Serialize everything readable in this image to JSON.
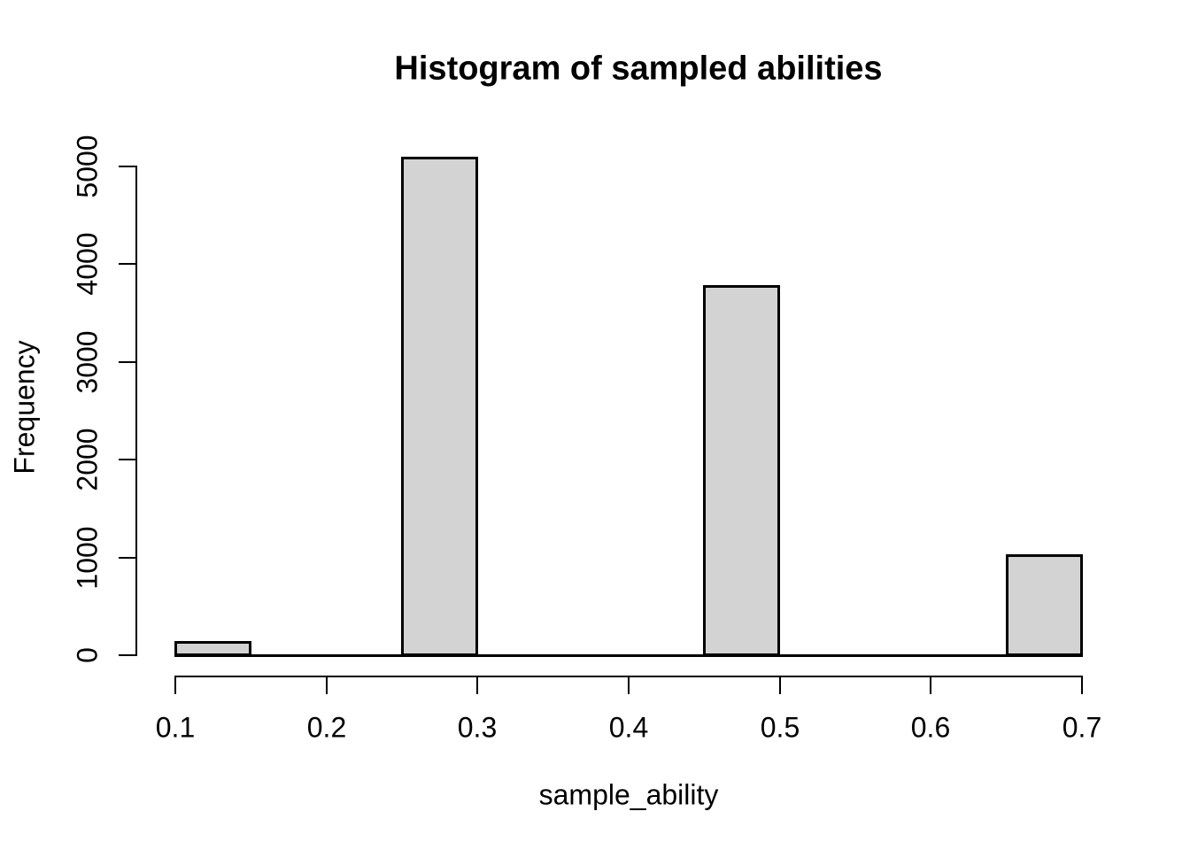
{
  "chart_data": {
    "type": "bar",
    "subtype": "histogram",
    "title": "Histogram of sampled abilities",
    "xlabel": "sample_ability",
    "ylabel": "Frequency",
    "xlim": [
      0.1,
      0.7
    ],
    "ylim": [
      0,
      5000
    ],
    "xticks": [
      0.1,
      0.2,
      0.3,
      0.4,
      0.5,
      0.6,
      0.7
    ],
    "yticks": [
      0,
      1000,
      2000,
      3000,
      4000,
      5000
    ],
    "bin_width": 0.05,
    "bins": [
      {
        "from": 0.1,
        "to": 0.15,
        "count": 135
      },
      {
        "from": 0.15,
        "to": 0.2,
        "count": 0
      },
      {
        "from": 0.2,
        "to": 0.25,
        "count": 0
      },
      {
        "from": 0.25,
        "to": 0.3,
        "count": 5090
      },
      {
        "from": 0.3,
        "to": 0.35,
        "count": 0
      },
      {
        "from": 0.35,
        "to": 0.4,
        "count": 0
      },
      {
        "from": 0.4,
        "to": 0.45,
        "count": 0
      },
      {
        "from": 0.45,
        "to": 0.5,
        "count": 3775
      },
      {
        "from": 0.5,
        "to": 0.55,
        "count": 0
      },
      {
        "from": 0.55,
        "to": 0.6,
        "count": 0
      },
      {
        "from": 0.6,
        "to": 0.65,
        "count": 0
      },
      {
        "from": 0.65,
        "to": 0.7,
        "count": 1020
      }
    ],
    "colors": {
      "bar_fill": "#d3d3d3",
      "bar_stroke": "#000000",
      "axis": "#000000",
      "text": "#000000",
      "background": "#ffffff"
    },
    "grid": false,
    "legend": false
  }
}
